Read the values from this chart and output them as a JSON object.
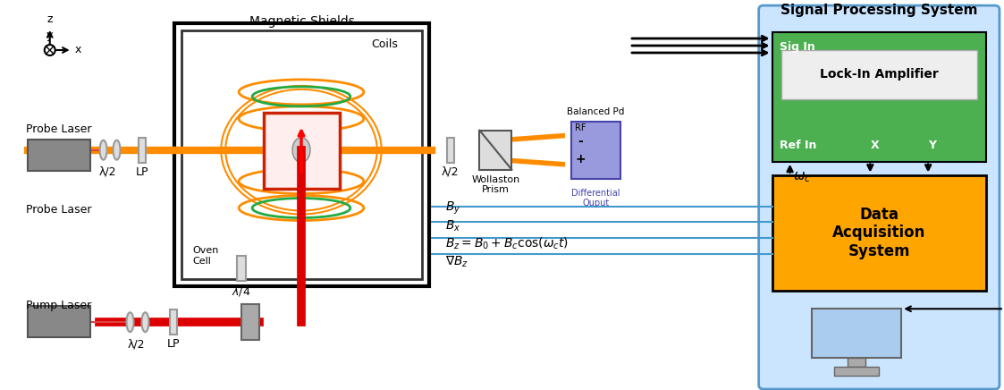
{
  "bg_color": "#ffffff",
  "signal_processing_bg": "#cce5ff",
  "signal_processing_border": "#5599cc",
  "lock_in_bg": "#4caf50",
  "lock_in_inner_bg": "#eeeeee",
  "data_acq_bg": "#ffa500",
  "probe_laser_color": "#888888",
  "pump_laser_color": "#888888",
  "orange_beam": "#ff8c00",
  "red_beam": "#dd0000",
  "blue_line": "#4499cc",
  "axis_color": "#000000",
  "title_text": "Signal Processing System",
  "lock_in_text": "Lock-In Amplifier",
  "data_acq_text": "Data\nAcquisition\nSystem",
  "probe_label": "Probe Laser",
  "pump_label": "Pump Laser",
  "magnetic_shields_label": "Magnetic Shields",
  "coils_label": "Coils",
  "oven_cell_label": "Oven\nCell",
  "wollaston_label": "Wollaston\nPrism",
  "balanced_pd_label": "Balanced Pd",
  "diff_output_label": "Differential\nOuput",
  "sig_in_label": "Sig In",
  "ref_in_label": "Ref In",
  "x_label": "X",
  "y_label": "Y",
  "omega_c_label": "ω_c",
  "by_label": "B_y",
  "bx_label": "B_x",
  "bz_label": "B_z = B_0 + B_c cos(ω_c t)",
  "grad_bz_label": "∇B_z",
  "lambda_half_1": "λ/2",
  "lp_label": "LP"
}
